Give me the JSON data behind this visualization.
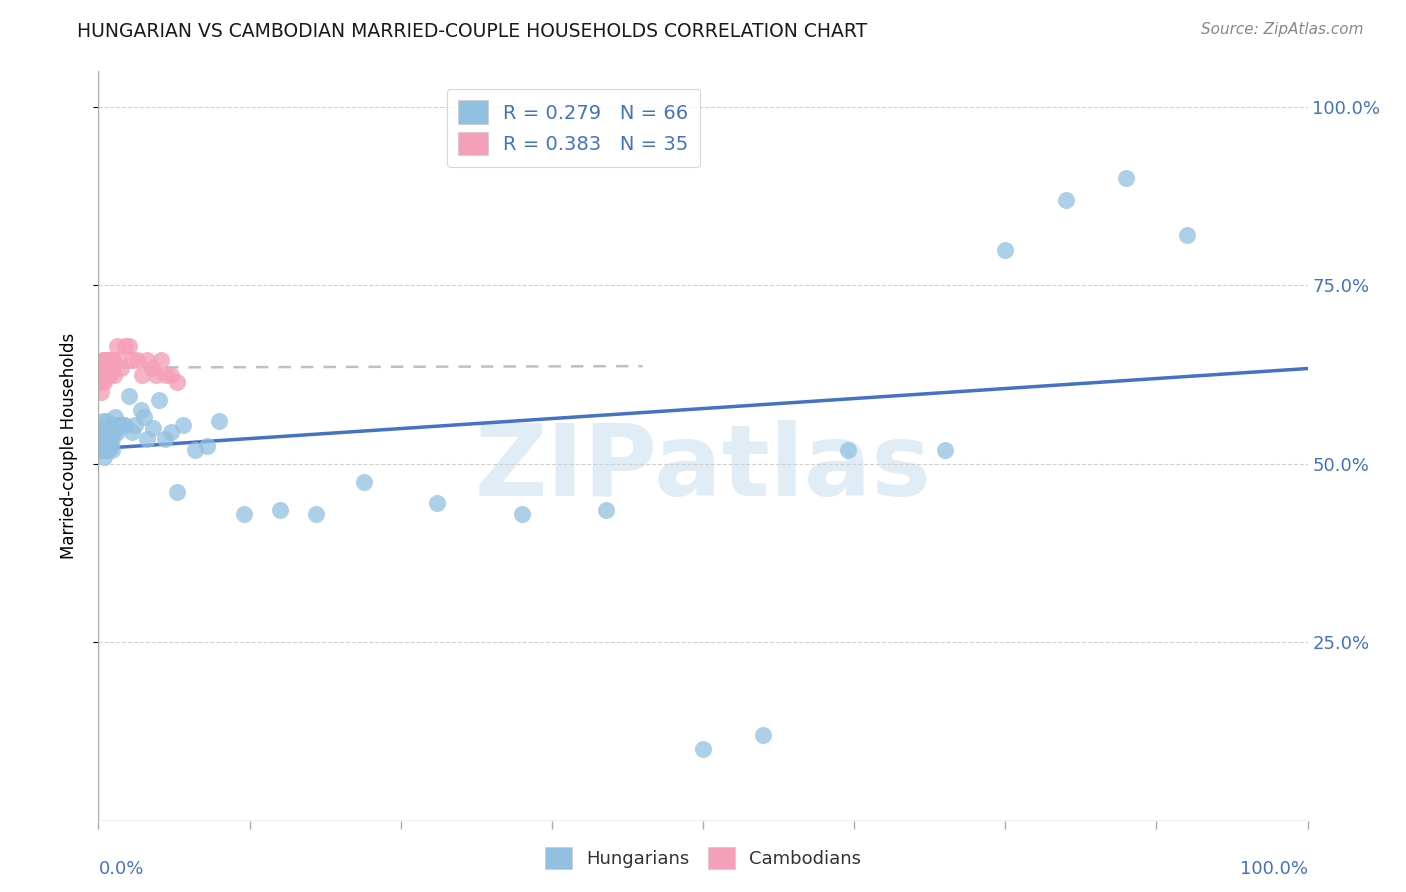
{
  "title": "HUNGARIAN VS CAMBODIAN MARRIED-COUPLE HOUSEHOLDS CORRELATION CHART",
  "source": "Source: ZipAtlas.com",
  "ylabel": "Married-couple Households",
  "watermark": "ZIPatlas",
  "hungarian_R": 0.279,
  "hungarian_N": 66,
  "cambodian_R": 0.383,
  "cambodian_N": 35,
  "hungarian_color": "#92c0e0",
  "cambodian_color": "#f4a0b8",
  "trend_hungarian_color": "#4472c4",
  "trend_cambodian_color": "#c0c0c0",
  "accent_color": "#4472c4",
  "hungarian_x": [
    0.001,
    0.002,
    0.002,
    0.002,
    0.003,
    0.003,
    0.003,
    0.004,
    0.004,
    0.004,
    0.005,
    0.005,
    0.005,
    0.006,
    0.006,
    0.006,
    0.007,
    0.007,
    0.007,
    0.008,
    0.008,
    0.009,
    0.009,
    0.01,
    0.01,
    0.011,
    0.011,
    0.012,
    0.013,
    0.014,
    0.015,
    0.016,
    0.017,
    0.018,
    0.02,
    0.022,
    0.025,
    0.028,
    0.03,
    0.035,
    0.038,
    0.04,
    0.045,
    0.05,
    0.055,
    0.06,
    0.065,
    0.07,
    0.08,
    0.09,
    0.1,
    0.12,
    0.15,
    0.18,
    0.22,
    0.28,
    0.35,
    0.42,
    0.5,
    0.55,
    0.62,
    0.7,
    0.75,
    0.8,
    0.85,
    0.9
  ],
  "hungarian_y": [
    0.525,
    0.535,
    0.545,
    0.55,
    0.52,
    0.53,
    0.54,
    0.52,
    0.545,
    0.56,
    0.51,
    0.53,
    0.545,
    0.52,
    0.535,
    0.55,
    0.53,
    0.54,
    0.56,
    0.52,
    0.545,
    0.53,
    0.545,
    0.525,
    0.54,
    0.52,
    0.535,
    0.545,
    0.545,
    0.565,
    0.545,
    0.555,
    0.555,
    0.555,
    0.555,
    0.555,
    0.595,
    0.545,
    0.555,
    0.575,
    0.565,
    0.535,
    0.55,
    0.59,
    0.535,
    0.545,
    0.46,
    0.555,
    0.52,
    0.525,
    0.56,
    0.43,
    0.435,
    0.43,
    0.475,
    0.445,
    0.43,
    0.435,
    0.1,
    0.12,
    0.52,
    0.52,
    0.8,
    0.87,
    0.9,
    0.82
  ],
  "cambodian_x": [
    0.001,
    0.002,
    0.002,
    0.003,
    0.003,
    0.004,
    0.004,
    0.005,
    0.005,
    0.006,
    0.006,
    0.007,
    0.007,
    0.008,
    0.008,
    0.009,
    0.01,
    0.011,
    0.012,
    0.013,
    0.015,
    0.017,
    0.019,
    0.022,
    0.025,
    0.028,
    0.032,
    0.036,
    0.04,
    0.044,
    0.048,
    0.052,
    0.056,
    0.06,
    0.065
  ],
  "cambodian_y": [
    0.62,
    0.6,
    0.635,
    0.615,
    0.635,
    0.625,
    0.645,
    0.615,
    0.645,
    0.625,
    0.645,
    0.625,
    0.645,
    0.625,
    0.645,
    0.625,
    0.645,
    0.635,
    0.645,
    0.625,
    0.665,
    0.645,
    0.635,
    0.665,
    0.665,
    0.645,
    0.645,
    0.625,
    0.645,
    0.635,
    0.625,
    0.645,
    0.625,
    0.625,
    0.615
  ],
  "xlim": [
    0.0,
    1.0
  ],
  "ylim": [
    0.0,
    1.05
  ],
  "xtick_positions": [
    0.0,
    0.125,
    0.25,
    0.375,
    0.5,
    0.625,
    0.75,
    0.875,
    1.0
  ],
  "ytick_positions": [
    0.25,
    0.5,
    0.75,
    1.0
  ],
  "yticklabels_right": [
    "25.0%",
    "50.0%",
    "75.0%",
    "100.0%"
  ],
  "background_color": "#ffffff",
  "grid_color": "#d0d0d0"
}
